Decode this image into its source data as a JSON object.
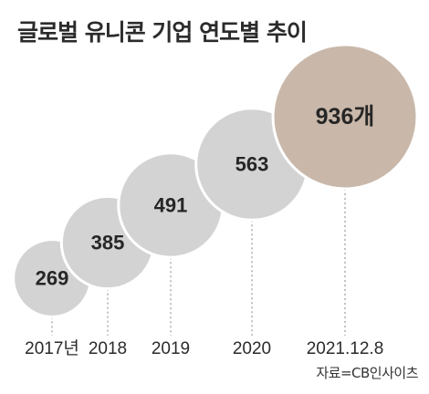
{
  "chart_data": {
    "type": "bubble",
    "title": "글로벌 유니콘 기업 연도별 추이",
    "categories": [
      "2017년",
      "2018",
      "2019",
      "2020",
      "2021.12.8"
    ],
    "values": [
      269,
      385,
      491,
      563,
      936
    ],
    "value_labels": [
      "269",
      "385",
      "491",
      "563",
      "936개"
    ],
    "source": "자료=CB인사이츠",
    "colors": {
      "bubble": "#d3d3d3",
      "highlight": "#c9b8aa",
      "text": "#262626",
      "connector": "#999999"
    }
  }
}
